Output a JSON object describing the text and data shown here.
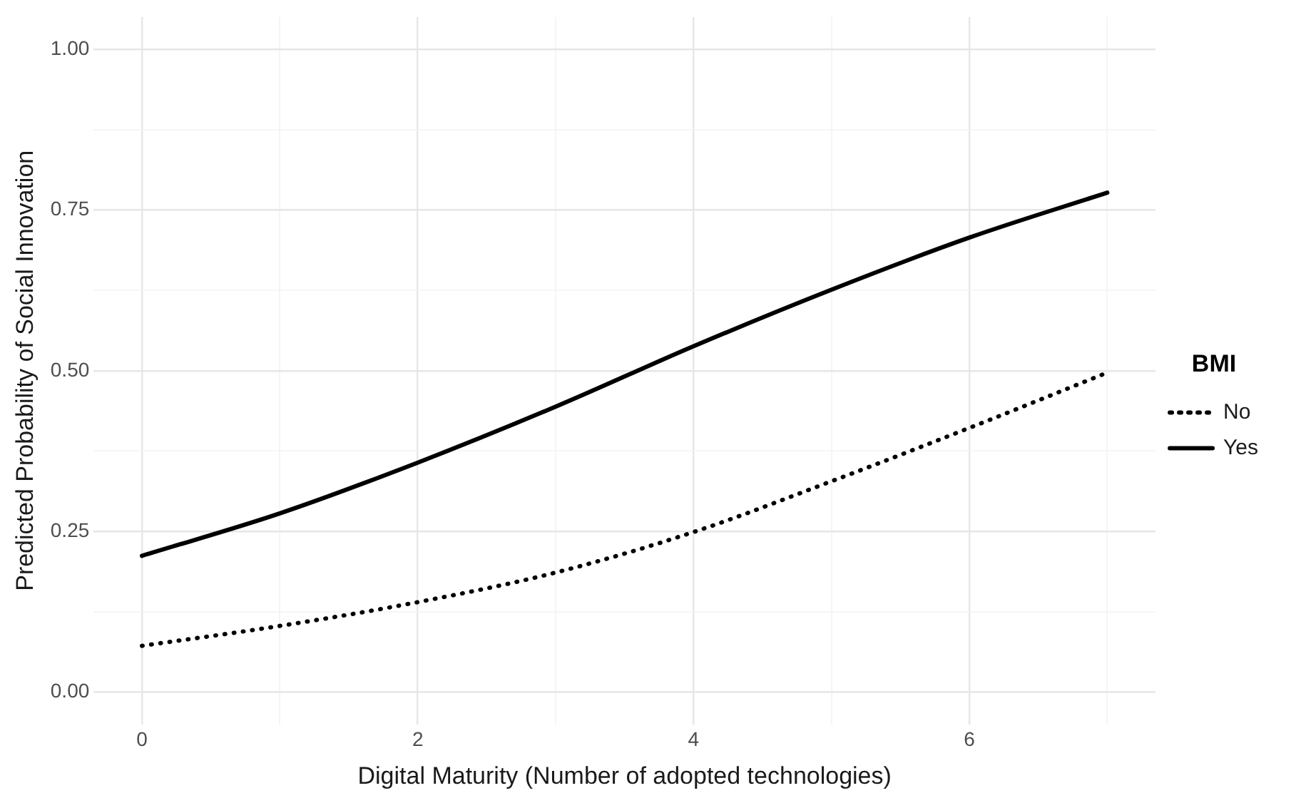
{
  "chart_data": {
    "type": "line",
    "xlabel": "Digital Maturity (Number of adopted technologies)",
    "ylabel": "Predicted Probability of Social Innovation",
    "legend_title": "BMI",
    "legend": "right",
    "grid": true,
    "marker": "none",
    "xlim": [
      -0.35,
      7.35
    ],
    "xticks": [
      0,
      {
        "value": 1,
        "label": null
      },
      2,
      {
        "value": 3,
        "label": null
      },
      4,
      {
        "value": 5,
        "label": null
      },
      6,
      {
        "value": 7,
        "label": null
      }
    ],
    "ylim": [
      -0.05,
      1.05
    ],
    "yticks": [
      {
        "value": 0,
        "label": "0.00"
      },
      {
        "value": 0.125,
        "label": null
      },
      {
        "value": 0.25,
        "label": "0.25"
      },
      {
        "value": 0.375,
        "label": null
      },
      {
        "value": 0.5,
        "label": "0.50"
      },
      {
        "value": 0.625,
        "label": null
      },
      {
        "value": 0.75,
        "label": "0.75"
      },
      {
        "value": 0.875,
        "label": null
      },
      {
        "value": 1,
        "label": "1.00"
      }
    ],
    "x": [
      0,
      1,
      2,
      3,
      4,
      5,
      6,
      7
    ],
    "series": [
      {
        "name": "No",
        "color": "#000000",
        "line_style": "dotted",
        "values": [
          0.072,
          0.103,
          0.14,
          0.186,
          0.249,
          0.328,
          0.411,
          0.497
        ]
      },
      {
        "name": "Yes",
        "color": "#000000",
        "line_style": "solid",
        "values": [
          0.212,
          0.278,
          0.357,
          0.444,
          0.538,
          0.626,
          0.707,
          0.777
        ]
      }
    ]
  }
}
